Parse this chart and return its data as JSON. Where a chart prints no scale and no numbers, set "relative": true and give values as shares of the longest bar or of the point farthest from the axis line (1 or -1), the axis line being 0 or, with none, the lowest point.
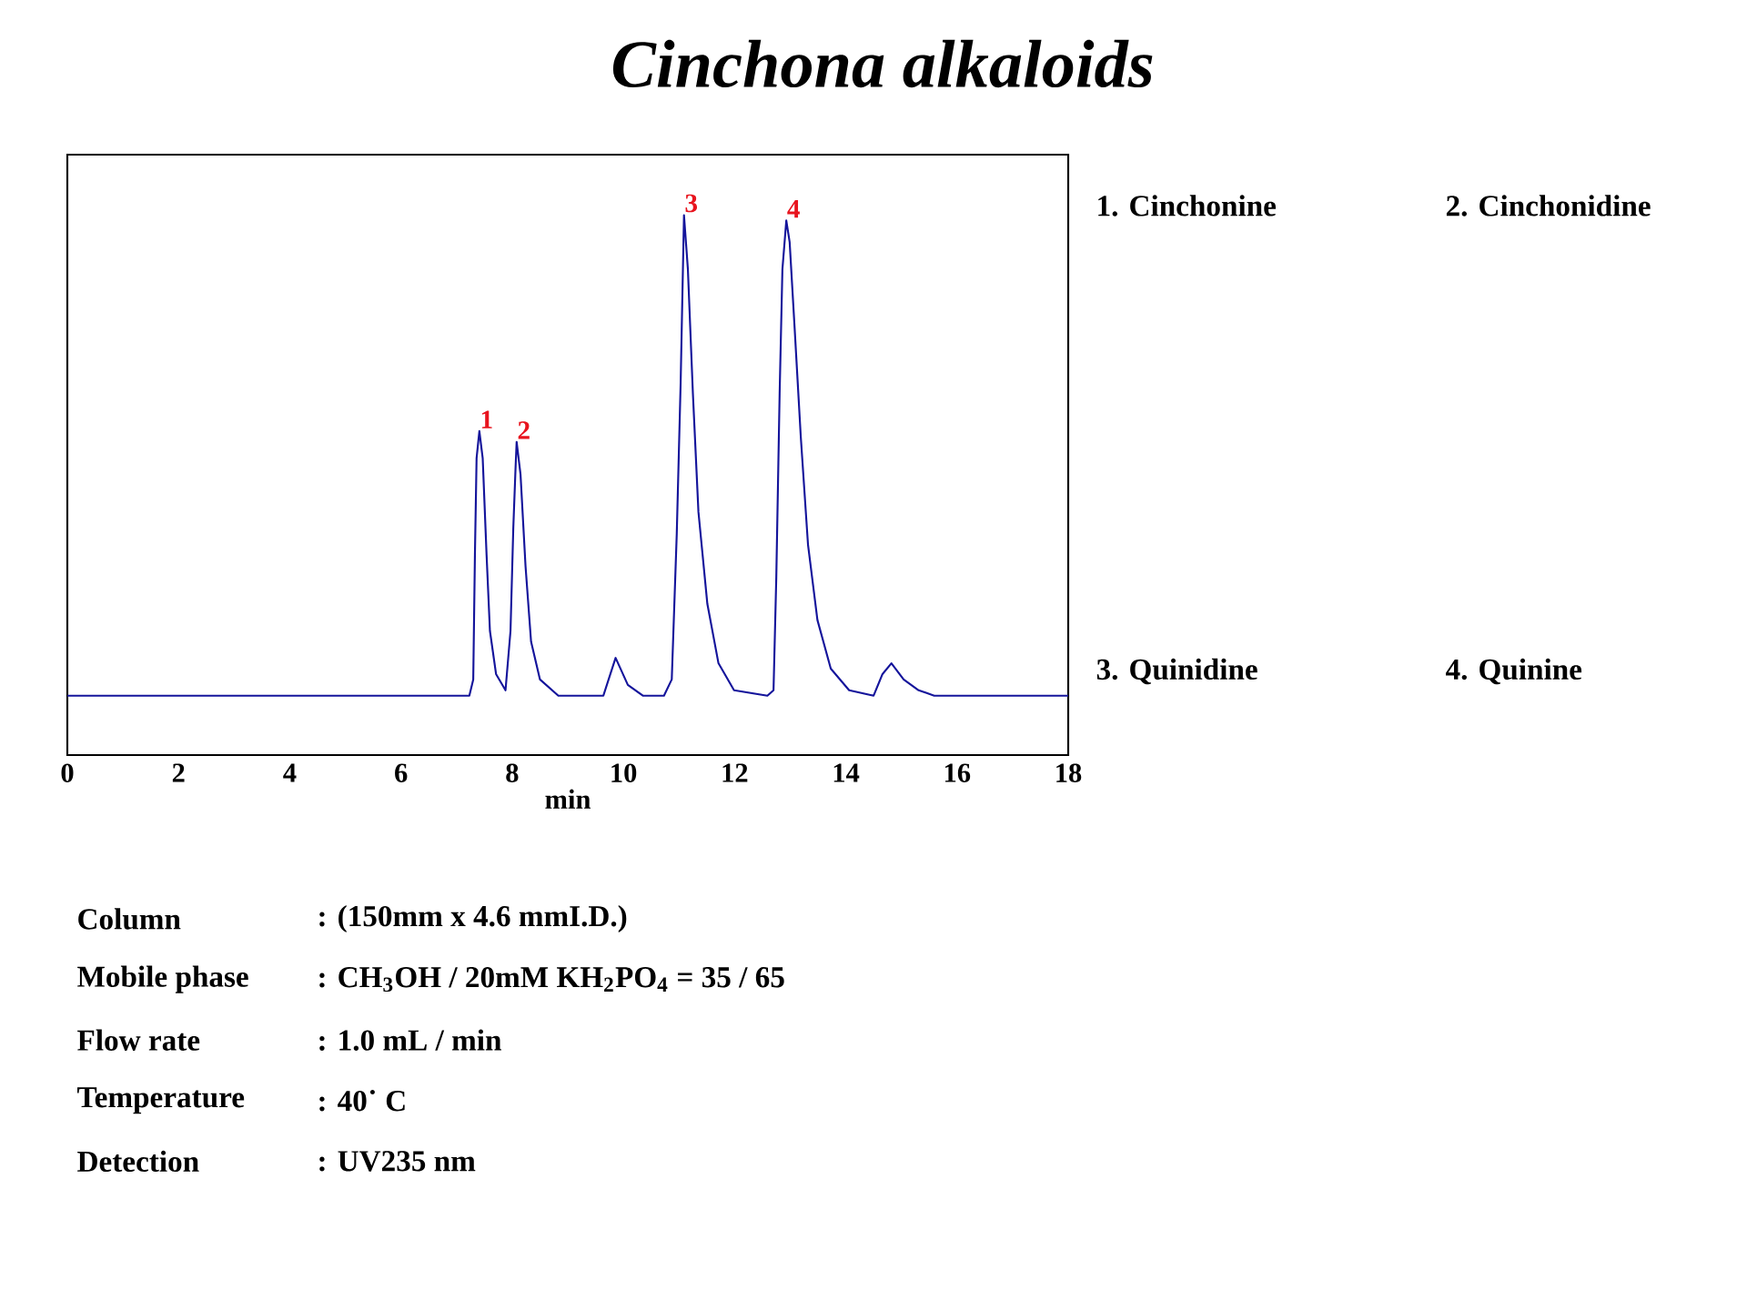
{
  "chart_data": {
    "type": "line",
    "title": "Cinchona alkaloids",
    "xlabel": "min",
    "relative": true,
    "tick_labels": "x",
    "xlim": [
      0,
      18
    ],
    "xticks": [
      0,
      2,
      4,
      6,
      8,
      10,
      12,
      14,
      16,
      18
    ],
    "x": [
      0,
      7.23,
      7.3,
      7.33,
      7.36,
      7.41,
      7.47,
      7.54,
      7.6,
      7.71,
      7.88,
      7.97,
      8.02,
      8.06,
      8.08,
      8.15,
      8.24,
      8.34,
      8.5,
      8.83,
      9.64,
      9.86,
      10.08,
      10.35,
      10.73,
      10.87,
      10.96,
      11.03,
      11.09,
      11.16,
      11.25,
      11.35,
      11.51,
      11.71,
      11.99,
      12.59,
      12.7,
      12.75,
      12.81,
      12.86,
      12.93,
      12.99,
      13.08,
      13.19,
      13.32,
      13.49,
      13.73,
      14.06,
      14.5,
      14.66,
      14.82,
      15.04,
      15.31,
      15.59,
      18
    ],
    "values": [
      0.11,
      0.11,
      0.14,
      0.37,
      0.55,
      0.6,
      0.55,
      0.37,
      0.23,
      0.15,
      0.12,
      0.23,
      0.42,
      0.53,
      0.58,
      0.52,
      0.35,
      0.21,
      0.14,
      0.11,
      0.11,
      0.18,
      0.13,
      0.11,
      0.11,
      0.14,
      0.41,
      0.69,
      1.0,
      0.9,
      0.67,
      0.45,
      0.28,
      0.17,
      0.12,
      0.11,
      0.12,
      0.33,
      0.67,
      0.9,
      0.99,
      0.95,
      0.79,
      0.59,
      0.39,
      0.25,
      0.16,
      0.12,
      0.11,
      0.15,
      0.17,
      0.14,
      0.12,
      0.11,
      0.11
    ],
    "color": "#14149b",
    "annotations": [
      {
        "text": "1",
        "x": 7.41,
        "y": 0.6
      },
      {
        "text": "2",
        "x": 8.08,
        "y": 0.58
      },
      {
        "text": "3",
        "x": 11.09,
        "y": 1.0
      },
      {
        "text": "4",
        "x": 12.93,
        "y": 0.99
      },
      "1. Cinchonine",
      "2. Cinchonidine",
      "3. Quinidine",
      "4. Quinine",
      "Column",
      ": (150mm x 4.6 mmI.D.)",
      "Mobile phase",
      ": CH$_{3}$OH / 20mM KH$_{2}$PO$_{4}$ = 35 / 65",
      "Flow rate",
      ": 1.0 mL / min",
      "Temperature",
      ": 40˙ C",
      "Detection",
      ": UV235 nm"
    ]
  }
}
